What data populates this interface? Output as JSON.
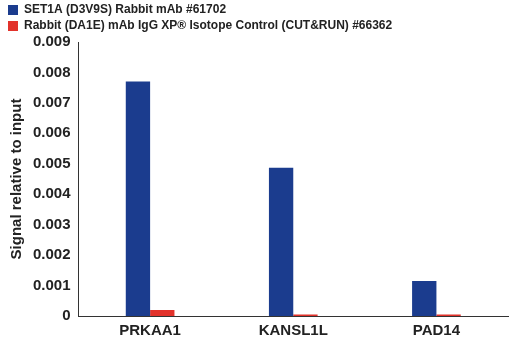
{
  "chart_data": {
    "type": "bar",
    "y_label": "Signal relative to input",
    "categories": [
      "PRKAA1",
      "KANSL1L",
      "PAD14"
    ],
    "series": [
      {
        "name": "SET1A (D3V9S) Rabbit mAb #61702",
        "color": "#1b3c8e",
        "values": [
          0.0077,
          0.00487,
          0.00115
        ]
      },
      {
        "name": "Rabbit (DA1E) mAb IgG XP® Isotope Control (CUT&RUN) #66362",
        "color": "#e2322b",
        "values": [
          0.0002,
          5e-05,
          5e-05
        ]
      }
    ],
    "ylim": [
      0,
      0.009
    ],
    "yticks": [
      0,
      0.001,
      0.002,
      0.003,
      0.004,
      0.005,
      0.006,
      0.007,
      0.008,
      0.009
    ],
    "grid": false,
    "legend": "upper left"
  }
}
